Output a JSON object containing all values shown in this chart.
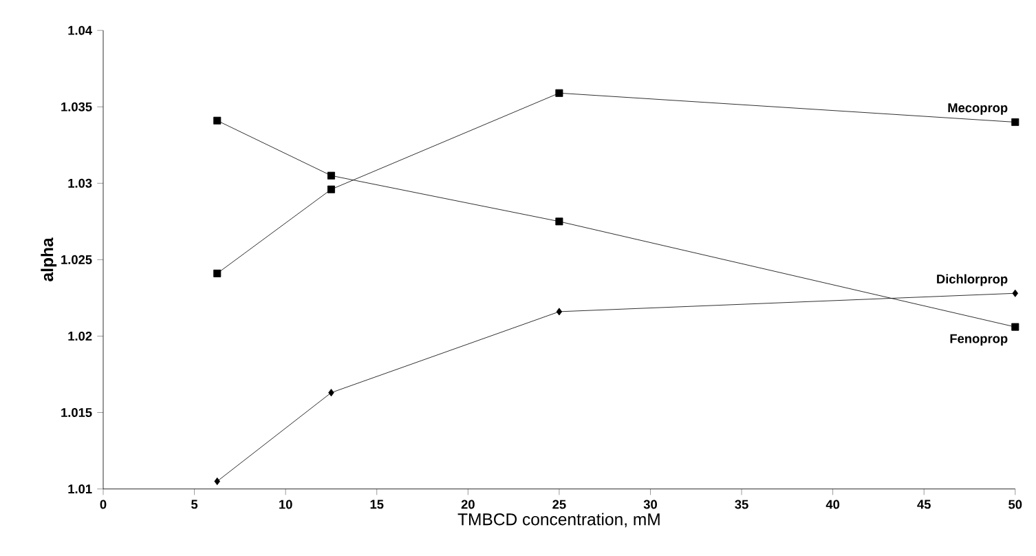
{
  "chart_data": {
    "type": "line",
    "xlabel": "TMBCD concentration, mM",
    "ylabel": "alpha",
    "x": [
      6.25,
      12.5,
      25,
      50
    ],
    "series": [
      {
        "name": "Mecoprop",
        "color": "#000000",
        "marker": "square",
        "values": [
          1.0241,
          1.0296,
          1.0359,
          1.034
        ]
      },
      {
        "name": "Dichlorprop",
        "color": "#000000",
        "marker": "diamond",
        "values": [
          1.0105,
          1.0163,
          1.0216,
          1.0228
        ]
      },
      {
        "name": "Fenoprop",
        "color": "#000000",
        "marker": "square",
        "values": [
          1.0341,
          1.0305,
          1.0275,
          1.0206
        ]
      }
    ],
    "xlim": [
      0,
      50
    ],
    "xticks": [
      0,
      5,
      10,
      15,
      20,
      25,
      30,
      35,
      40,
      45,
      50
    ],
    "ylim": [
      1.01,
      1.04
    ],
    "yticks": [
      1.01,
      1.015,
      1.02,
      1.025,
      1.03,
      1.035,
      1.04
    ],
    "grid": false,
    "legend": false,
    "line_style": "solid"
  }
}
